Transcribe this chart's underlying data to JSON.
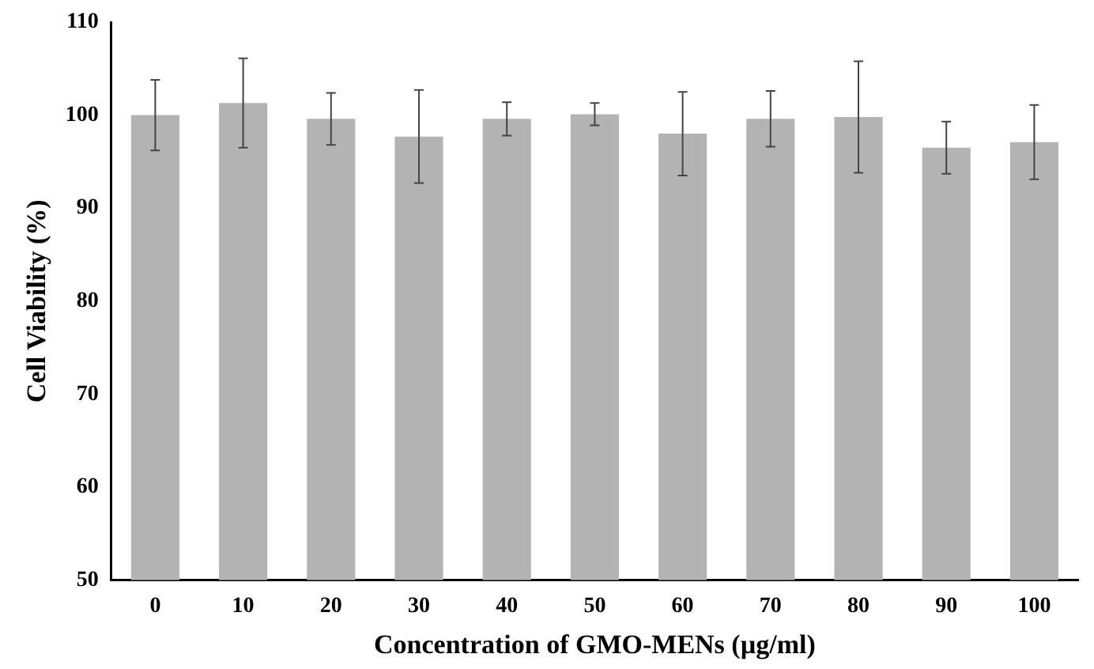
{
  "chart_data": {
    "type": "bar",
    "xlabel": "Concentration of GMO-MENs (µg/ml)",
    "ylabel": "Cell Viability (%)",
    "categories": [
      "0",
      "10",
      "20",
      "30",
      "40",
      "50",
      "60",
      "70",
      "80",
      "90",
      "100"
    ],
    "series": [
      {
        "color": "#b3b3b3",
        "values": [
          100,
          101.3,
          99.6,
          97.7,
          99.6,
          100.1,
          98.0,
          99.6,
          99.8,
          96.5,
          97.1
        ],
        "errors": [
          3.8,
          4.8,
          2.8,
          5,
          1.8,
          1.2,
          4.5,
          3,
          6,
          2.8,
          4
        ]
      }
    ],
    "ylim": [
      50,
      110
    ],
    "yticks": [
      50,
      60,
      70,
      80,
      90,
      100,
      110
    ],
    "grid": false,
    "legend": false
  }
}
